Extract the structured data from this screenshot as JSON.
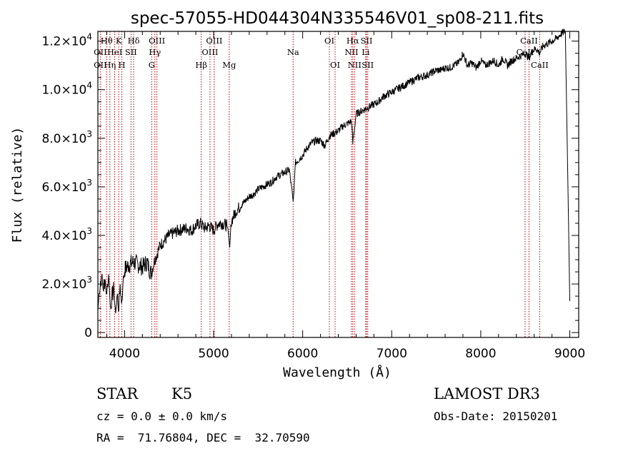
{
  "chart_data": {
    "type": "line",
    "title": "spec-57055-HD044304N335546V01_sp08-211.fits",
    "xlabel": "Wavelength (Å)",
    "ylabel": "Flux (relative)",
    "xlim": [
      3700,
      9100
    ],
    "ylim": [
      -200,
      12400
    ],
    "x_ticks": [
      4000,
      5000,
      6000,
      7000,
      8000,
      9000
    ],
    "x_tick_labels": [
      "4000",
      "5000",
      "6000",
      "7000",
      "8000",
      "9000"
    ],
    "y_ticks": [
      0,
      2000,
      4000,
      6000,
      8000,
      10000,
      12000
    ],
    "y_tick_labels": [
      {
        "m": "0",
        "e": ""
      },
      {
        "m": "2.0×10",
        "e": "3"
      },
      {
        "m": "4.0×10",
        "e": "3"
      },
      {
        "m": "6.0×10",
        "e": "3"
      },
      {
        "m": "8.0×10",
        "e": "3"
      },
      {
        "m": "1.0×10",
        "e": "4"
      },
      {
        "m": "1.2×10",
        "e": "4"
      }
    ],
    "grid": false,
    "legend": "none",
    "line_color": "#000000",
    "marker_line_color": "#c00000",
    "spectral_lines": [
      {
        "label": "Hθ",
        "wl": 3798,
        "row": 1
      },
      {
        "label": "OII",
        "wl": 3727,
        "row": 2
      },
      {
        "label": "OII",
        "wl": 3727,
        "row": 3
      },
      {
        "label": "Hη",
        "wl": 3835,
        "row": 3
      },
      {
        "label": "HeI",
        "wl": 3889,
        "row": 2
      },
      {
        "label": "K",
        "wl": 3934,
        "row": 1
      },
      {
        "label": "H",
        "wl": 3969,
        "row": 3
      },
      {
        "label": "SII",
        "wl": 4072,
        "row": 2
      },
      {
        "label": "Hδ",
        "wl": 4102,
        "row": 1
      },
      {
        "label": "OIII",
        "wl": 4363,
        "row": 1
      },
      {
        "label": "Hγ",
        "wl": 4340,
        "row": 2
      },
      {
        "label": "G",
        "wl": 4305,
        "row": 3
      },
      {
        "label": "Hβ",
        "wl": 4861,
        "row": 3
      },
      {
        "label": "OIII",
        "wl": 5007,
        "row": 1
      },
      {
        "label": "OIII",
        "wl": 4959,
        "row": 2
      },
      {
        "label": "Mg",
        "wl": 5175,
        "row": 3
      },
      {
        "label": "Na",
        "wl": 5893,
        "row": 2
      },
      {
        "label": "OI",
        "wl": 6300,
        "row": 1
      },
      {
        "label": "OI",
        "wl": 6364,
        "row": 3
      },
      {
        "label": "Hα",
        "wl": 6563,
        "row": 1
      },
      {
        "label": "NII",
        "wl": 6548,
        "row": 2
      },
      {
        "label": "NII",
        "wl": 6583,
        "row": 3
      },
      {
        "label": "SII",
        "wl": 6717,
        "row": 1
      },
      {
        "label": "Li",
        "wl": 6708,
        "row": 2
      },
      {
        "label": "SII",
        "wl": 6731,
        "row": 3
      },
      {
        "label": "CaII",
        "wl": 8542,
        "row": 1
      },
      {
        "label": "CaII",
        "wl": 8498,
        "row": 2
      },
      {
        "label": "CaII",
        "wl": 8662,
        "row": 3
      }
    ],
    "spectrum": {
      "x": [
        3700,
        3720,
        3740,
        3760,
        3780,
        3800,
        3820,
        3840,
        3860,
        3880,
        3900,
        3920,
        3935,
        3950,
        3965,
        3980,
        4000,
        4050,
        4100,
        4150,
        4200,
        4250,
        4300,
        4330,
        4360,
        4400,
        4450,
        4500,
        4550,
        4600,
        4650,
        4700,
        4750,
        4800,
        4850,
        4900,
        4950,
        5000,
        5050,
        5100,
        5150,
        5180,
        5200,
        5250,
        5300,
        5350,
        5400,
        5450,
        5500,
        5550,
        5600,
        5650,
        5700,
        5750,
        5800,
        5850,
        5893,
        5920,
        5950,
        6000,
        6050,
        6100,
        6150,
        6200,
        6250,
        6300,
        6350,
        6400,
        6450,
        6500,
        6550,
        6563,
        6600,
        6650,
        6700,
        6750,
        6800,
        6850,
        6900,
        6950,
        7000,
        7050,
        7100,
        7150,
        7200,
        7250,
        7300,
        7350,
        7400,
        7450,
        7500,
        7550,
        7600,
        7650,
        7700,
        7750,
        7800,
        7850,
        7900,
        7950,
        8000,
        8050,
        8100,
        8150,
        8200,
        8250,
        8300,
        8350,
        8400,
        8450,
        8500,
        8542,
        8580,
        8620,
        8662,
        8700,
        8750,
        8800,
        8850,
        8900,
        8950,
        9000
      ],
      "y": [
        900,
        1900,
        2300,
        1800,
        2200,
        1600,
        2400,
        1100,
        1500,
        1800,
        800,
        1600,
        900,
        2000,
        1200,
        1900,
        2600,
        2800,
        2900,
        2800,
        2700,
        2900,
        2400,
        2900,
        3200,
        3600,
        3800,
        4000,
        4100,
        4200,
        4250,
        4300,
        4200,
        4400,
        4500,
        4300,
        4400,
        4200,
        4500,
        4500,
        4400,
        3500,
        4600,
        5000,
        5200,
        5400,
        5600,
        5700,
        5900,
        6000,
        6100,
        6200,
        6400,
        6500,
        6600,
        6700,
        5400,
        7000,
        7100,
        7300,
        7600,
        7800,
        7900,
        7900,
        7700,
        8100,
        8200,
        8300,
        8500,
        8600,
        8700,
        7800,
        9000,
        9100,
        9200,
        9300,
        9400,
        9500,
        9700,
        9800,
        9900,
        10000,
        10100,
        10200,
        10300,
        10400,
        10500,
        10550,
        10600,
        10700,
        10800,
        10800,
        10900,
        10900,
        11000,
        11100,
        11500,
        11000,
        11100,
        10900,
        11200,
        11000,
        11100,
        11200,
        11000,
        11300,
        11000,
        11200,
        11300,
        11400,
        11500,
        11300,
        11600,
        11700,
        11500,
        11800,
        11900,
        12000,
        12100,
        12300,
        12400,
        1300
      ]
    }
  },
  "info": {
    "star_class": "STAR",
    "star_type": "K5",
    "cz": "cz = 0.0 ± 0.0 km/s",
    "radec": "RA =  71.76804, DEC =  32.70590",
    "survey": "LAMOST DR3",
    "obs_date": "Obs-Date: 20150201"
  }
}
